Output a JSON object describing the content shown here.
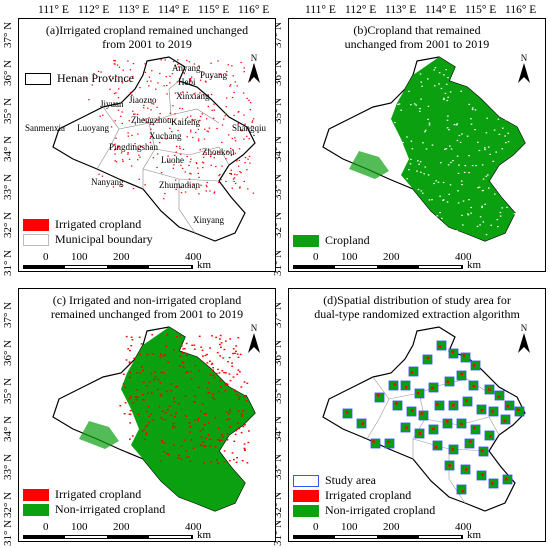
{
  "longitudes": [
    "111° E",
    "112° E",
    "113° E",
    "114° E",
    "115° E",
    "116° E"
  ],
  "latitudes": [
    "37° N",
    "36° N",
    "35° N",
    "34° N",
    "33° N",
    "32° N",
    "31° N"
  ],
  "colors": {
    "irrigated": "#ff0000",
    "cropland": "#0aa010",
    "study_area": "#3355ff",
    "boundary": "#555555"
  },
  "panels": {
    "a": {
      "title_line1": "(a)Irrigated cropland remained unchanged",
      "title_line2": "from 2001 to 2019",
      "legend_top": "Henan Province",
      "legend": [
        "Irrigated cropland",
        "Municipal boundary"
      ],
      "cities": [
        "Anyang",
        "Puyang",
        "Hebi",
        "Xinxiang",
        "Jiyuan",
        "Jiaozuo",
        "Sanmenxia",
        "Luoyang",
        "Zhengzhou",
        "Kaifeng",
        "Shangqiu",
        "Xuchang",
        "Pingdingshan",
        "Luohe",
        "Zhoukou",
        "Nanyang",
        "Zhumadian",
        "Xinyang"
      ]
    },
    "b": {
      "title_line1": "(b)Cropland that remained",
      "title_line2": "unchanged from 2001 to 2019",
      "legend": [
        "Cropland"
      ]
    },
    "c": {
      "title_line1": "(c) Irrigated and non-irrigated cropland",
      "title_line2": "remained unchanged from 2001 to 2019",
      "legend": [
        "Irrigated cropland",
        "Non-irrigated cropland"
      ]
    },
    "d": {
      "title_line1": "(d)Spatial distribution of study area for",
      "title_line2": "dual-type randomized extraction algorithm",
      "legend": [
        "Study area",
        "Irrigated cropland",
        "Non-irrigated cropland"
      ]
    }
  },
  "scale": {
    "ticks": [
      "0",
      "100",
      "200",
      "400"
    ],
    "unit": "km"
  },
  "north_label": "N"
}
